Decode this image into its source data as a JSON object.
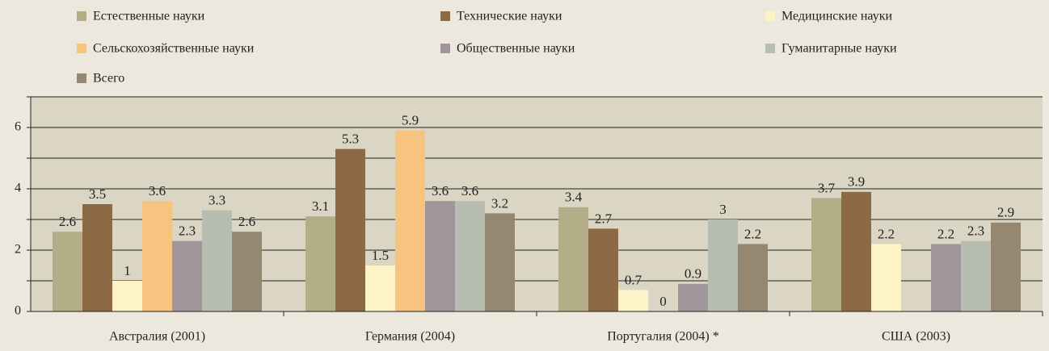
{
  "chart_data": {
    "type": "bar",
    "categories": [
      "Австралия (2001)",
      "Германия (2004)",
      "Португалия (2004) *",
      "США (2003)"
    ],
    "series": [
      {
        "name": "Естественные науки",
        "color": "#b3ae88",
        "values": [
          2.6,
          3.1,
          3.4,
          3.7
        ]
      },
      {
        "name": "Технические науки",
        "color": "#8b6a45",
        "values": [
          3.5,
          5.3,
          2.7,
          3.9
        ]
      },
      {
        "name": "Медицинские науки",
        "color": "#fdf3c6",
        "values": [
          1,
          1.5,
          0.7,
          2.2
        ]
      },
      {
        "name": "Сельскохозяйственные науки",
        "color": "#f6c47e",
        "values": [
          3.6,
          5.9,
          0,
          null
        ]
      },
      {
        "name": "Общественные науки",
        "color": "#a0969a",
        "values": [
          2.3,
          3.6,
          0.9,
          2.2
        ]
      },
      {
        "name": "Гуманитарные науки",
        "color": "#b8bdb2",
        "values": [
          3.3,
          3.6,
          3,
          2.3
        ]
      },
      {
        "name": "Всего",
        "color": "#958870",
        "values": [
          2.6,
          3.2,
          2.2,
          2.9
        ]
      }
    ],
    "ylim": [
      0,
      7
    ],
    "yticks": [
      0,
      2,
      4,
      6
    ],
    "minor_yticks": [
      1,
      3,
      5,
      7
    ],
    "grid": true,
    "legend": "top"
  }
}
